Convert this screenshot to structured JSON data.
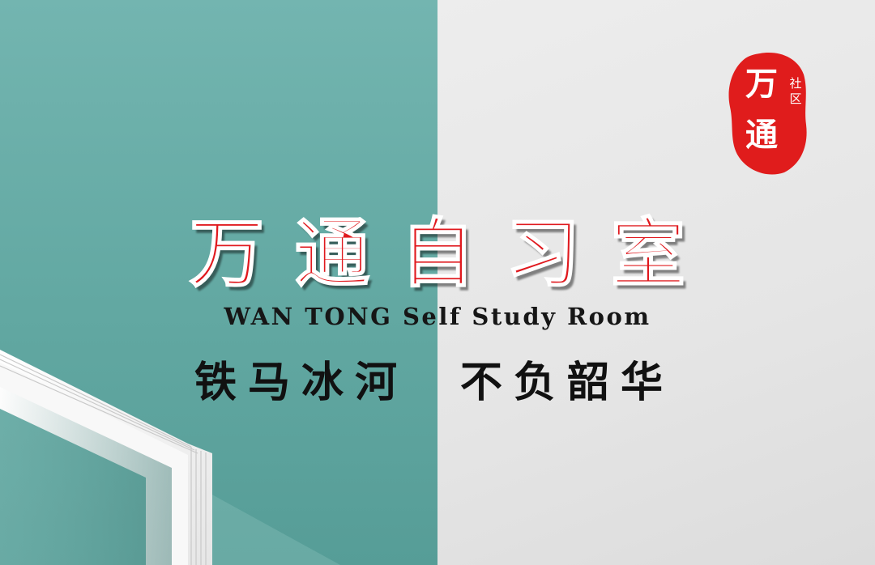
{
  "colors": {
    "teal_background": "#6aaea8",
    "grey_background": "#e8e8e8",
    "title_red": "#e0191e",
    "seal_red": "#e01c1c",
    "text_black": "#111111"
  },
  "seal": {
    "main_char_1": "万",
    "main_char_2": "通",
    "small_text": "社区"
  },
  "title": {
    "chinese": "万通自习室",
    "english": "WAN TONG Self Study Room"
  },
  "slogan": {
    "part1": "铁马冰河",
    "part2": "不负韶华"
  },
  "decoration": {
    "book_icon": "open-book-icon"
  }
}
